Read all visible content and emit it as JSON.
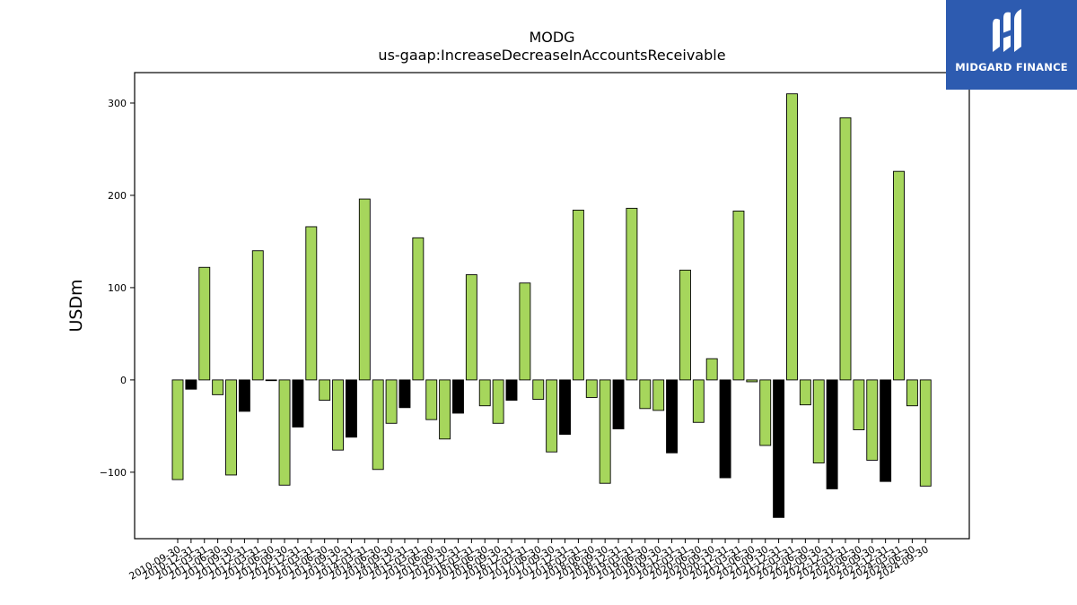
{
  "header": {
    "title": "MODG",
    "subtitle": "us-gaap:IncreaseDecreaseInAccountsReceivable"
  },
  "logo": {
    "brand": "MIDGARD FINANCE",
    "icon": "midgard-logo-icon",
    "background": "#2d5bb0"
  },
  "chart_data": {
    "type": "bar",
    "title": "MODG",
    "subtitle": "us-gaap:IncreaseDecreaseInAccountsReceivable",
    "xlabel": "",
    "ylabel": "USDm",
    "ylim": [
      -172,
      333
    ],
    "yticks": [
      -100,
      0,
      100,
      200,
      300
    ],
    "grid": false,
    "legend": "none",
    "colors": {
      "quarter": "#a6d65c",
      "q4": "#000000",
      "edge": "#000000"
    },
    "categories": [
      "2010-09-30",
      "2010-12-31",
      "2011-03-31",
      "2011-06-30",
      "2011-09-30",
      "2011-12-31",
      "2012-03-31",
      "2012-06-30",
      "2012-09-30",
      "2012-12-31",
      "2013-03-31",
      "2013-06-30",
      "2013-09-30",
      "2013-12-31",
      "2014-03-31",
      "2014-06-30",
      "2014-09-30",
      "2014-12-31",
      "2015-03-31",
      "2015-06-30",
      "2015-09-30",
      "2015-12-31",
      "2016-03-31",
      "2016-06-30",
      "2016-09-30",
      "2016-12-31",
      "2017-03-31",
      "2017-06-30",
      "2017-09-30",
      "2017-12-31",
      "2018-03-31",
      "2018-06-30",
      "2018-09-30",
      "2018-12-31",
      "2019-03-31",
      "2019-06-30",
      "2019-09-30",
      "2019-12-31",
      "2020-03-31",
      "2020-06-30",
      "2020-09-30",
      "2020-12-31",
      "2021-03-31",
      "2021-06-30",
      "2021-09-30",
      "2021-12-31",
      "2022-03-31",
      "2022-06-30",
      "2022-09-30",
      "2022-12-31",
      "2023-03-31",
      "2023-06-30",
      "2023-09-30",
      "2023-12-31",
      "2024-03-31",
      "2024-06-30",
      "2024-09-30"
    ],
    "values": [
      -108,
      -10,
      122,
      -16,
      -103,
      -34,
      140,
      0,
      -114,
      -51,
      166,
      -22,
      -76,
      -62,
      196,
      -97,
      -47,
      -30,
      154,
      -43,
      -64,
      -36,
      114,
      -28,
      -47,
      -22,
      105,
      -21,
      -78,
      -59,
      184,
      -19,
      -112,
      -53,
      186,
      -31,
      -33,
      -79,
      119,
      -46,
      23,
      -106,
      183,
      -2,
      -71,
      -149,
      310,
      -27,
      -90,
      -118,
      284,
      -54,
      -87,
      -110,
      226,
      -28,
      -115
    ],
    "is_q4": [
      false,
      true,
      false,
      false,
      false,
      true,
      false,
      false,
      false,
      true,
      false,
      false,
      false,
      true,
      false,
      false,
      false,
      true,
      false,
      false,
      false,
      true,
      false,
      false,
      false,
      true,
      false,
      false,
      false,
      true,
      false,
      false,
      false,
      true,
      false,
      false,
      false,
      true,
      false,
      false,
      false,
      true,
      false,
      false,
      false,
      true,
      false,
      false,
      false,
      true,
      false,
      false,
      false,
      true,
      false,
      false,
      false
    ]
  }
}
